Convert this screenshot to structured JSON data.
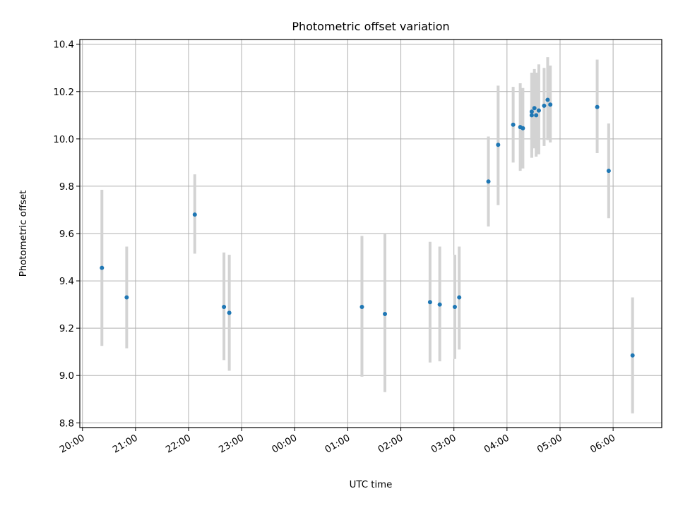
{
  "chart_data": {
    "type": "scatter",
    "title": "Photometric offset variation",
    "xlabel": "UTC time",
    "ylabel": "Photometric offset",
    "x_tick_labels": [
      "20:00",
      "21:00",
      "22:00",
      "23:00",
      "00:00",
      "01:00",
      "02:00",
      "03:00",
      "04:00",
      "05:00",
      "06:00"
    ],
    "y_tick_labels": [
      "8.8",
      "9.0",
      "9.2",
      "9.4",
      "9.6",
      "9.8",
      "10.0",
      "10.2",
      "10.4"
    ],
    "xlim": [
      "19:57",
      "06:55"
    ],
    "ylim": [
      8.78,
      10.42
    ],
    "grid": true,
    "marker_color": "#1f77b4",
    "errorbar_color": "#d3d3d3",
    "points": [
      {
        "x": "20:22",
        "y": 9.455,
        "lo": 9.125,
        "hi": 9.785
      },
      {
        "x": "20:50",
        "y": 9.33,
        "lo": 9.115,
        "hi": 9.545
      },
      {
        "x": "22:07",
        "y": 9.68,
        "lo": 9.515,
        "hi": 9.85
      },
      {
        "x": "22:40",
        "y": 9.29,
        "lo": 9.065,
        "hi": 9.52
      },
      {
        "x": "22:46",
        "y": 9.265,
        "lo": 9.02,
        "hi": 9.51
      },
      {
        "x": "01:16",
        "y": 9.29,
        "lo": 8.995,
        "hi": 9.59
      },
      {
        "x": "01:42",
        "y": 9.26,
        "lo": 8.93,
        "hi": 9.6
      },
      {
        "x": "02:33",
        "y": 9.31,
        "lo": 9.055,
        "hi": 9.565
      },
      {
        "x": "02:44",
        "y": 9.3,
        "lo": 9.06,
        "hi": 9.545
      },
      {
        "x": "03:01",
        "y": 9.29,
        "lo": 9.07,
        "hi": 9.51
      },
      {
        "x": "03:06",
        "y": 9.33,
        "lo": 9.11,
        "hi": 9.545
      },
      {
        "x": "03:39",
        "y": 9.82,
        "lo": 9.63,
        "hi": 10.01
      },
      {
        "x": "03:50",
        "y": 9.975,
        "lo": 9.72,
        "hi": 10.225
      },
      {
        "x": "04:07",
        "y": 10.06,
        "lo": 9.9,
        "hi": 10.22
      },
      {
        "x": "04:15",
        "y": 10.05,
        "lo": 9.865,
        "hi": 10.235
      },
      {
        "x": "04:18",
        "y": 10.045,
        "lo": 9.875,
        "hi": 10.215
      },
      {
        "x": "04:28",
        "y": 10.115,
        "lo": 9.945,
        "hi": 10.28
      },
      {
        "x": "04:28",
        "y": 10.1,
        "lo": 9.92,
        "hi": 10.28
      },
      {
        "x": "04:31",
        "y": 10.13,
        "lo": 9.96,
        "hi": 10.295
      },
      {
        "x": "04:33",
        "y": 10.1,
        "lo": 9.925,
        "hi": 10.28
      },
      {
        "x": "04:36",
        "y": 10.12,
        "lo": 9.935,
        "hi": 10.315
      },
      {
        "x": "04:42",
        "y": 10.14,
        "lo": 9.97,
        "hi": 10.3
      },
      {
        "x": "04:46",
        "y": 10.165,
        "lo": 9.995,
        "hi": 10.345
      },
      {
        "x": "04:49",
        "y": 10.145,
        "lo": 9.985,
        "hi": 10.31
      },
      {
        "x": "05:42",
        "y": 10.135,
        "lo": 9.94,
        "hi": 10.335
      },
      {
        "x": "05:55",
        "y": 9.865,
        "lo": 9.665,
        "hi": 10.065
      },
      {
        "x": "06:22",
        "y": 9.085,
        "lo": 8.84,
        "hi": 9.33
      }
    ]
  }
}
